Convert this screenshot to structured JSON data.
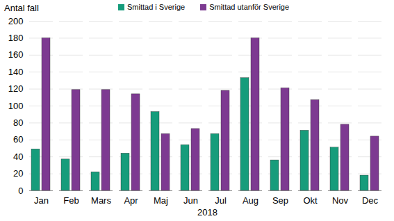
{
  "chart_data": {
    "type": "bar",
    "y_label": "Antal fall",
    "x_label": "2018",
    "categories": [
      "Jan",
      "Feb",
      "Mars",
      "Apr",
      "Maj",
      "Jun",
      "Jul",
      "Aug",
      "Sep",
      "Okt",
      "Nov",
      "Dec"
    ],
    "series": [
      {
        "name": "Smittad i Sverige",
        "color": "#169c7b",
        "values": [
          49,
          37,
          22,
          44,
          93,
          54,
          67,
          133,
          36,
          71,
          51,
          18
        ]
      },
      {
        "name": "Smittad utanför Sverige",
        "color": "#7d3a91",
        "values": [
          180,
          119,
          119,
          114,
          67,
          73,
          118,
          180,
          121,
          107,
          78,
          64
        ]
      }
    ],
    "ylim": [
      0,
      200
    ],
    "yticks": [
      0,
      20,
      40,
      60,
      80,
      100,
      120,
      140,
      160,
      180,
      200
    ],
    "grid": true,
    "legend": "top"
  }
}
